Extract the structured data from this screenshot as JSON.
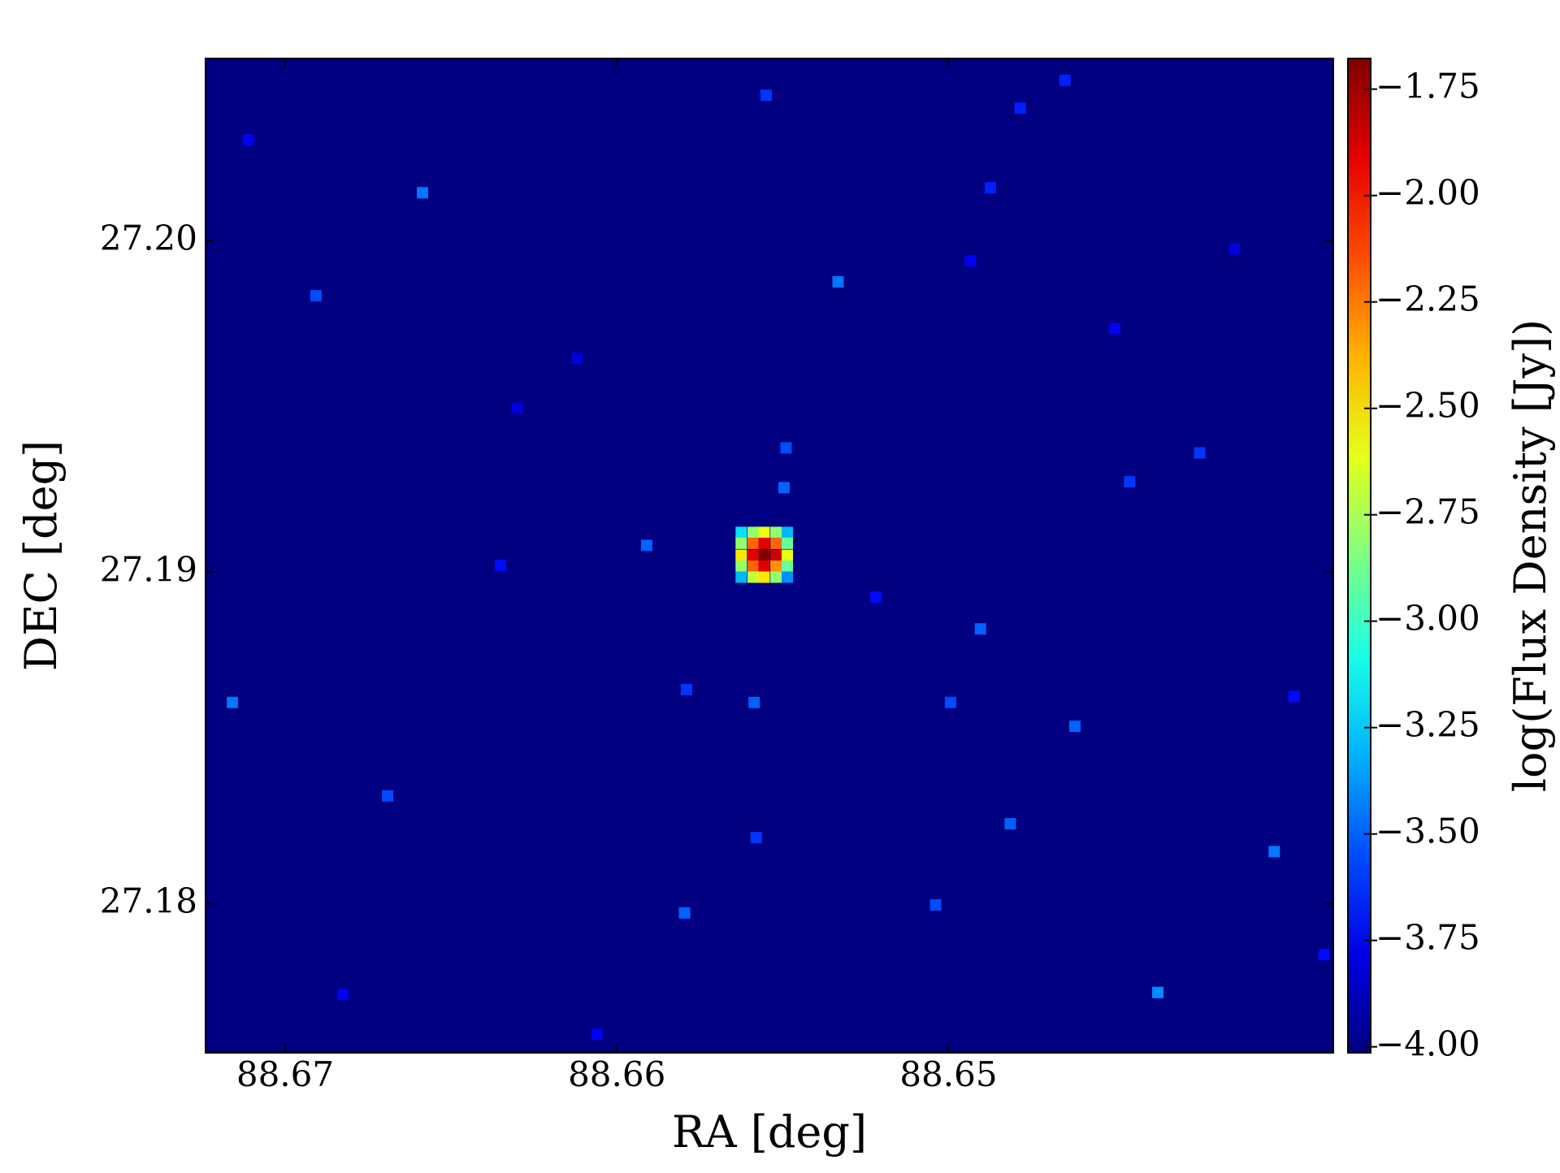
{
  "chart_data": {
    "type": "heatmap",
    "xlabel": "RA [deg]",
    "ylabel": "DEC [deg]",
    "colorbar_label": "log(Flux Density [Jy])",
    "colormap": "jet",
    "xlim": [
      88.6724,
      88.6384
    ],
    "ylim": [
      27.1755,
      27.2055
    ],
    "xticks": [
      88.67,
      88.66,
      88.65
    ],
    "yticks": [
      {
        "value": 27.2,
        "label": "27.20"
      },
      27.19,
      27.18
    ],
    "clim": [
      -4.014,
      -1.678
    ],
    "cticks": [
      {
        "value": -1.75,
        "label": "−1.75"
      },
      {
        "value": -2.0,
        "label": "−2.00"
      },
      {
        "value": -2.25,
        "label": "−2.25"
      },
      {
        "value": -2.5,
        "label": "−2.50"
      },
      {
        "value": -2.75,
        "label": "−2.75"
      },
      {
        "value": -3.0,
        "label": "−3.00"
      },
      {
        "value": -3.25,
        "label": "−3.25"
      },
      {
        "value": -3.5,
        "label": "−3.50"
      },
      {
        "value": -3.75,
        "label": "−3.75"
      },
      {
        "value": -4.0,
        "label": "−4.00"
      }
    ],
    "x": [
      88.65625,
      88.65589,
      88.65556,
      88.6552,
      88.65486,
      88.65625,
      88.65589,
      88.65556,
      88.6552,
      88.65486,
      88.65625,
      88.65589,
      88.65556,
      88.6552,
      88.65486,
      88.65625,
      88.65589,
      88.65556,
      88.6552,
      88.65486,
      88.65625,
      88.65589,
      88.65556,
      88.6552,
      88.65486,
      88.65333,
      88.6555,
      88.66586,
      88.66907,
      88.64904,
      88.64994,
      88.65586,
      88.6579,
      88.67159,
      88.65496,
      88.6549,
      88.6591,
      88.64814,
      88.64018,
      88.64369,
      88.65796,
      88.65039,
      88.6558,
      88.66691,
      88.64619,
      88.64454,
      88.64243,
      88.64874,
      88.64784,
      88.64649,
      88.64934,
      88.66351,
      88.66826,
      88.63958,
      88.6612,
      88.64499,
      88.663,
      88.6606,
      88.65219,
      88.64138,
      88.67111,
      88.63868
    ],
    "y": [
      27.1912,
      27.1912,
      27.1912,
      27.1912,
      27.1912,
      27.19087,
      27.19087,
      27.19087,
      27.19087,
      27.19087,
      27.19051,
      27.19051,
      27.19051,
      27.19051,
      27.19051,
      27.19018,
      27.19018,
      27.19018,
      27.19018,
      27.19018,
      27.18985,
      27.18985,
      27.18985,
      27.18985,
      27.18985,
      27.19876,
      27.20439,
      27.20145,
      27.19834,
      27.18829,
      27.18607,
      27.18607,
      27.18646,
      27.18607,
      27.19255,
      27.19375,
      27.19081,
      27.18241,
      27.18157,
      27.17732,
      27.17972,
      27.17996,
      27.18199,
      27.18325,
      27.18535,
      27.19273,
      27.1936,
      27.2016,
      27.204,
      27.20484,
      27.19939,
      27.19021,
      27.17726,
      27.18625,
      27.19645,
      27.19735,
      27.19495,
      27.17606,
      27.18925,
      27.19975,
      27.20304,
      27.17846
    ],
    "values": [
      -3.2,
      -2.8,
      -2.6,
      -2.8,
      -3.3,
      -2.8,
      -2.2,
      -1.9,
      -2.2,
      -2.9,
      -2.5,
      -1.9,
      -1.68,
      -1.85,
      -2.6,
      -2.8,
      -2.2,
      -1.9,
      -2.3,
      -2.9,
      -3.3,
      -2.7,
      -2.5,
      -2.8,
      -3.4,
      -3.45,
      -3.6,
      -3.45,
      -3.55,
      -3.5,
      -3.55,
      -3.5,
      -3.6,
      -3.45,
      -3.5,
      -3.55,
      -3.5,
      -3.5,
      -3.45,
      -3.4,
      -3.5,
      -3.55,
      -3.6,
      -3.55,
      -3.5,
      -3.6,
      -3.6,
      -3.65,
      -3.65,
      -3.65,
      -3.75,
      -3.7,
      -3.75,
      -3.7,
      -3.8,
      -3.75,
      -3.8,
      -3.75,
      -3.7,
      -3.8,
      -3.75,
      -3.7
    ]
  }
}
